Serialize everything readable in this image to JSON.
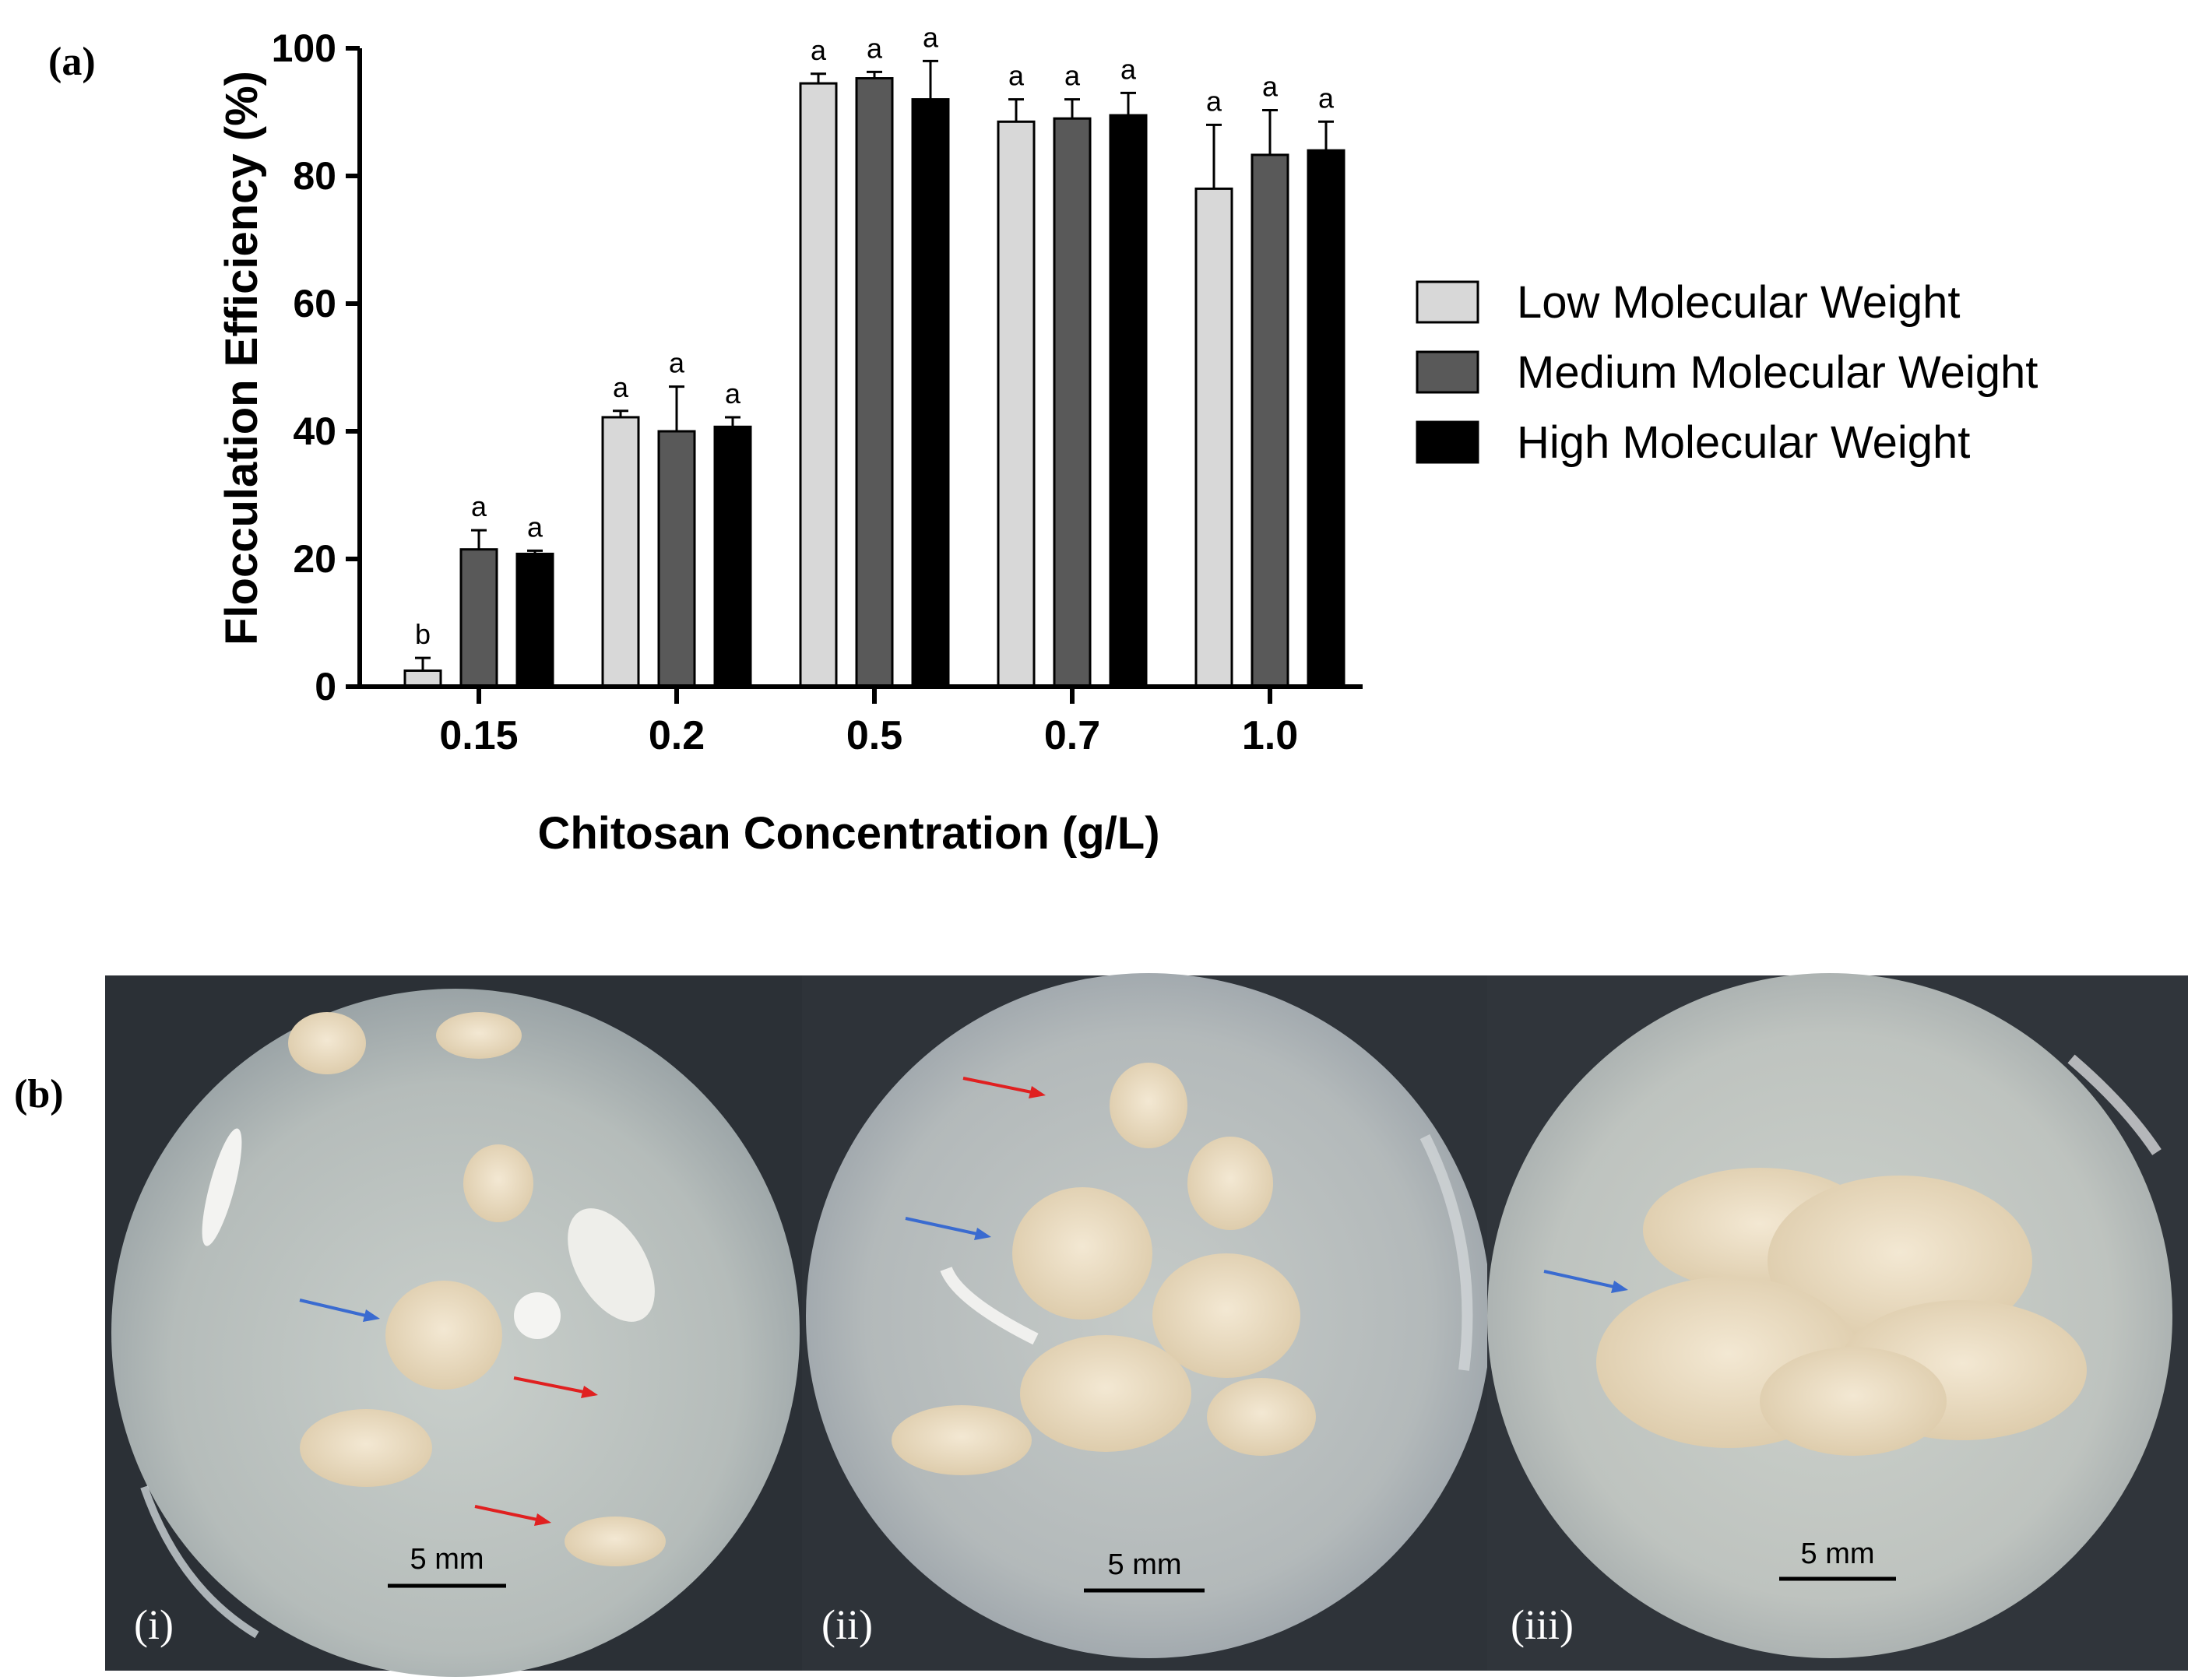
{
  "panel_a_label": "(a)",
  "panel_b_label": "(b)",
  "chart_data": {
    "type": "bar",
    "xlabel": "Chitosan Concentration (g/L)",
    "ylabel": "Flocculation  Efficiency (%)",
    "ylim": [
      0,
      100
    ],
    "yticks": [
      "0",
      "20",
      "40",
      "60",
      "80",
      "100"
    ],
    "categories": [
      "0.15",
      "0.2",
      "0.5",
      "0.7",
      "1.0"
    ],
    "legend_position": "right",
    "series": [
      {
        "name": "Low Molecular Weight",
        "color": "#d8d8d8",
        "values": [
          2.5,
          42.2,
          94.5,
          88.5,
          78.0
        ],
        "errors": [
          2.0,
          1.0,
          1.5,
          3.5,
          10.0
        ],
        "labels": [
          "b",
          "a",
          "a",
          "a",
          "a"
        ]
      },
      {
        "name": "Medium Molecular Weight",
        "color": "#595959",
        "values": [
          21.5,
          40.0,
          95.3,
          89.0,
          83.3
        ],
        "errors": [
          3.0,
          7.0,
          1.0,
          3.0,
          7.0
        ],
        "labels": [
          "a",
          "a",
          "a",
          "a",
          "a"
        ]
      },
      {
        "name": "High Molecular Weight",
        "color": "#000000",
        "values": [
          20.8,
          40.7,
          92.0,
          89.5,
          84.0
        ],
        "errors": [
          0.5,
          1.5,
          6.0,
          3.5,
          4.5
        ],
        "labels": [
          "a",
          "a",
          "a",
          "a",
          "a"
        ]
      }
    ]
  },
  "photos": [
    {
      "label": "(i)",
      "scale": "5 mm"
    },
    {
      "label": "(ii)",
      "scale": "5 mm"
    },
    {
      "label": "(iii)",
      "scale": "5 mm"
    }
  ]
}
